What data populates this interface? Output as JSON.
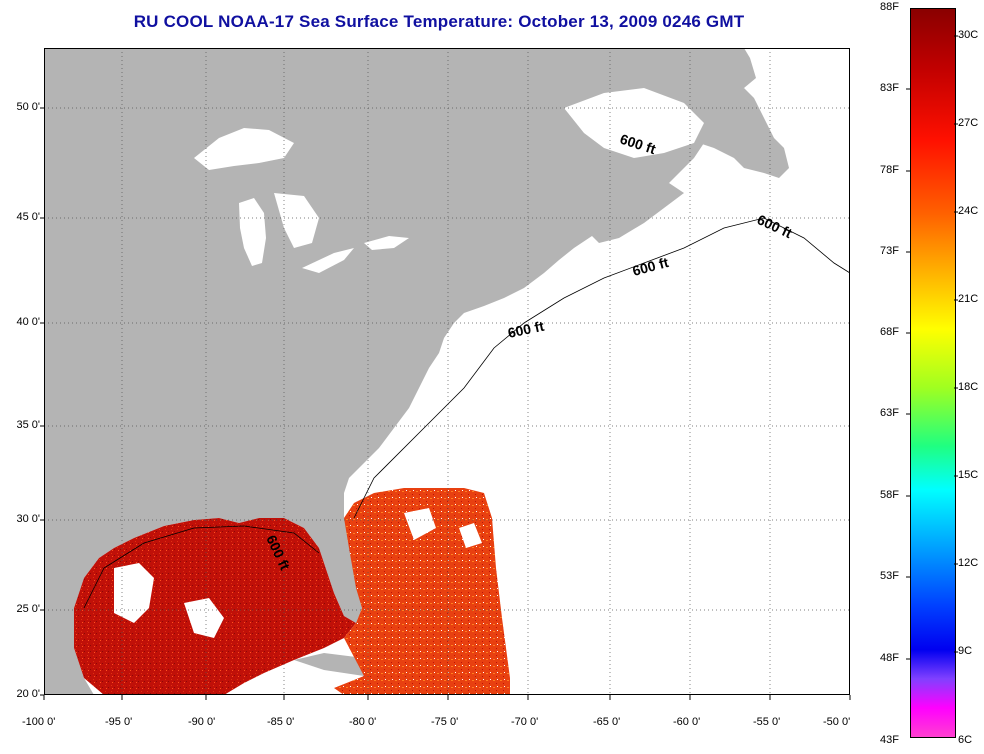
{
  "title": "RU COOL  NOAA-17  Sea Surface Temperature:  October 13, 2009 0246 GMT",
  "axes": {
    "lat_ticks": [
      "50 0'",
      "45 0'",
      "40 0'",
      "35 0'",
      "30 0'",
      "25 0'",
      "20 0'"
    ],
    "lon_ticks": [
      "-100 0'",
      "-95 0'",
      "-90 0'",
      "-85 0'",
      "-80 0'",
      "-75 0'",
      "-70 0'",
      "-65 0'",
      "-60 0'",
      "-55 0'",
      "-50 0'"
    ]
  },
  "colorbar": {
    "fahrenheit": [
      "88F",
      "83F",
      "78F",
      "73F",
      "68F",
      "63F",
      "58F",
      "53F",
      "48F",
      "43F"
    ],
    "celsius": [
      "30C",
      "27C",
      "24C",
      "21C",
      "18C",
      "15C",
      "12C",
      "9C",
      "6C"
    ]
  },
  "contours": {
    "label": "600 ft"
  },
  "colors": {
    "land": "#b4b4b4",
    "warm": "#c81010",
    "title": "#1010a0"
  }
}
